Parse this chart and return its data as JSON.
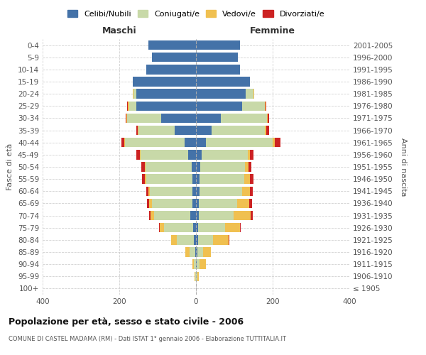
{
  "age_groups": [
    "100+",
    "95-99",
    "90-94",
    "85-89",
    "80-84",
    "75-79",
    "70-74",
    "65-69",
    "60-64",
    "55-59",
    "50-54",
    "45-49",
    "40-44",
    "35-39",
    "30-34",
    "25-29",
    "20-24",
    "15-19",
    "10-14",
    "5-9",
    "0-4"
  ],
  "birth_years": [
    "≤ 1905",
    "1906-1910",
    "1911-1915",
    "1916-1920",
    "1921-1925",
    "1926-1930",
    "1931-1935",
    "1936-1940",
    "1941-1945",
    "1946-1950",
    "1951-1955",
    "1956-1960",
    "1961-1965",
    "1966-1970",
    "1971-1975",
    "1976-1980",
    "1981-1985",
    "1986-1990",
    "1991-1995",
    "1996-2000",
    "2001-2005"
  ],
  "male_celibi": [
    0,
    0,
    0,
    2,
    5,
    8,
    15,
    10,
    10,
    10,
    12,
    20,
    30,
    55,
    90,
    155,
    155,
    165,
    130,
    115,
    125
  ],
  "male_coniugati": [
    0,
    2,
    5,
    15,
    45,
    75,
    95,
    105,
    110,
    120,
    120,
    125,
    155,
    95,
    90,
    20,
    8,
    0,
    0,
    0,
    0
  ],
  "male_vedovi": [
    0,
    2,
    5,
    10,
    15,
    12,
    8,
    8,
    5,
    3,
    2,
    1,
    2,
    1,
    1,
    2,
    1,
    0,
    0,
    0,
    0
  ],
  "male_divorziati": [
    0,
    0,
    0,
    0,
    0,
    2,
    5,
    5,
    5,
    8,
    8,
    10,
    8,
    5,
    3,
    2,
    1,
    0,
    0,
    0,
    0
  ],
  "female_nubili": [
    0,
    0,
    2,
    3,
    5,
    5,
    8,
    8,
    10,
    10,
    12,
    15,
    25,
    40,
    65,
    120,
    130,
    140,
    115,
    110,
    115
  ],
  "female_coniugate": [
    0,
    3,
    8,
    15,
    40,
    70,
    90,
    100,
    110,
    115,
    115,
    120,
    175,
    140,
    120,
    60,
    20,
    0,
    0,
    0,
    0
  ],
  "female_vedove": [
    0,
    5,
    15,
    20,
    40,
    40,
    45,
    30,
    20,
    15,
    10,
    5,
    5,
    3,
    2,
    2,
    1,
    0,
    0,
    0,
    0
  ],
  "female_divorziate": [
    0,
    0,
    0,
    0,
    2,
    2,
    5,
    8,
    8,
    10,
    8,
    10,
    15,
    8,
    3,
    2,
    1,
    0,
    0,
    0,
    0
  ],
  "color_celibi": "#4472a8",
  "color_coniugati": "#c8d9a8",
  "color_vedovi": "#f0c050",
  "color_divorziati": "#cc2222",
  "xlim": 400,
  "title": "Popolazione per età, sesso e stato civile - 2006",
  "subtitle": "COMUNE DI CASTEL MADAMA (RM) - Dati ISTAT 1° gennaio 2006 - Elaborazione TUTTITALIA.IT",
  "ylabel_left": "Fasce di età",
  "ylabel_right": "Anni di nascita",
  "label_maschi": "Maschi",
  "label_femmine": "Femmine",
  "legend_labels": [
    "Celibi/Nubili",
    "Coniugati/e",
    "Vedovi/e",
    "Divorziati/e"
  ],
  "bg_color": "#ffffff",
  "grid_color": "#cccccc"
}
